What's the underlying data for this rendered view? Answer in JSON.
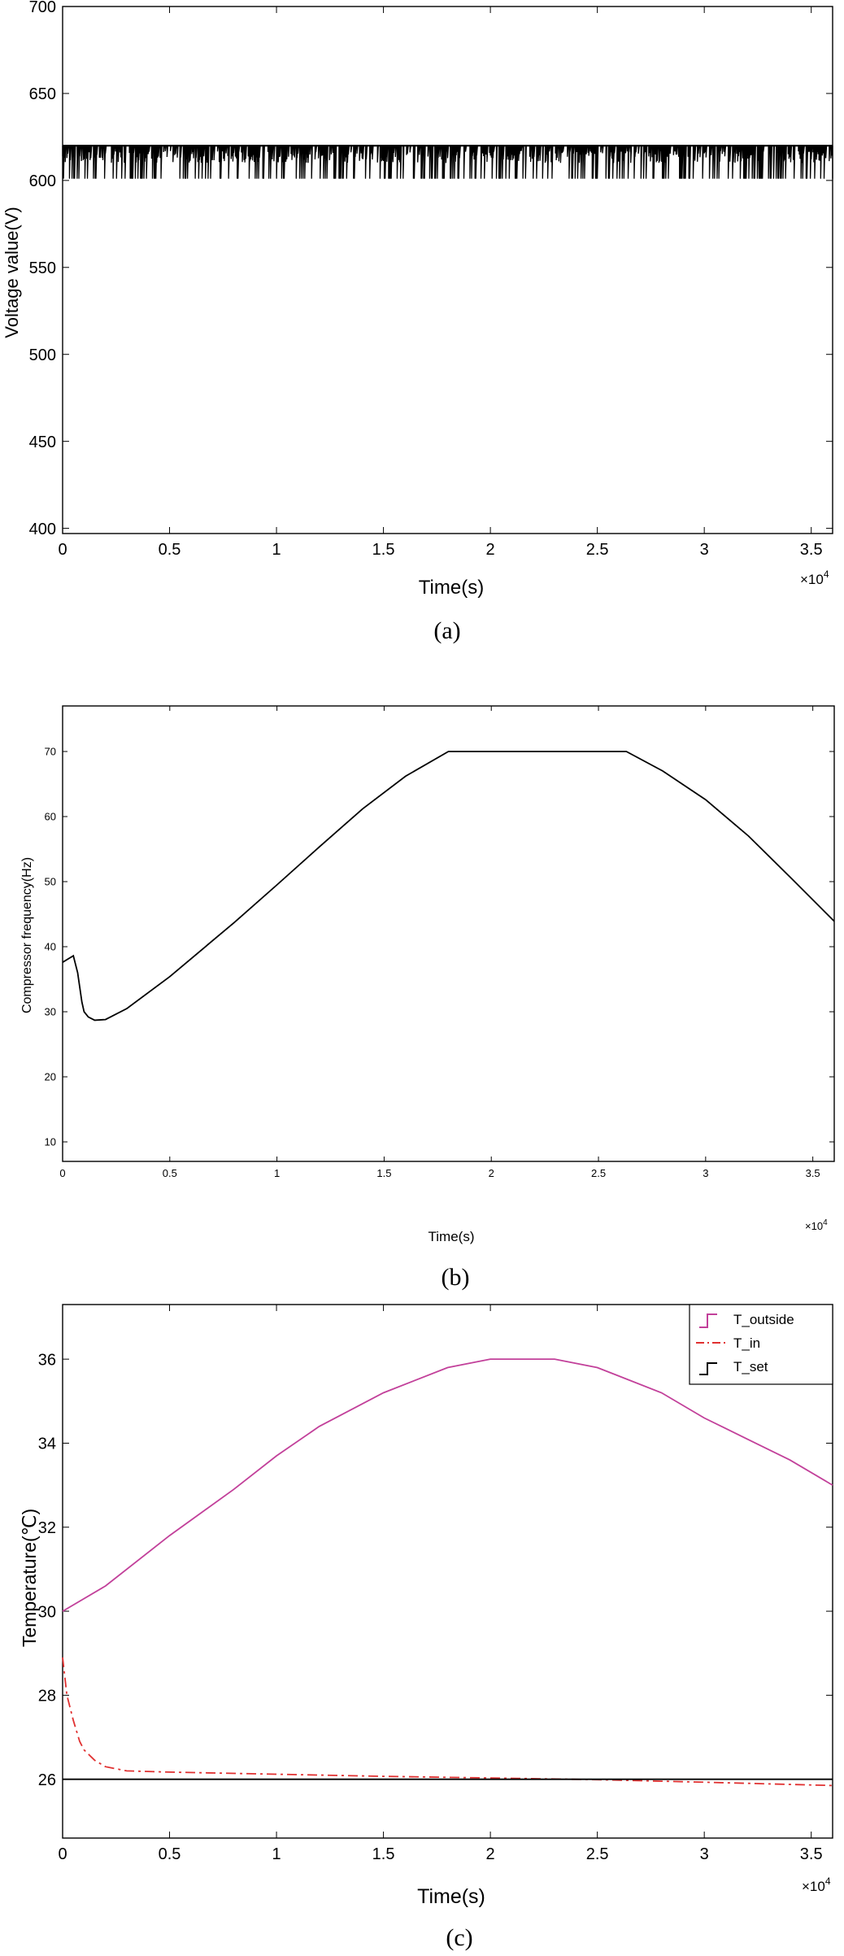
{
  "chart_data": [
    {
      "type": "line",
      "caption": "(a)",
      "xlabel": "Time(s)",
      "ylabel": "Voltage value(V)",
      "x_exponent": "×10",
      "x_exponent_power": "4",
      "xlim": [
        0,
        3.6
      ],
      "ylim": [
        397,
        700
      ],
      "xticks": [
        "0",
        "0.5",
        "1",
        "1.5",
        "2",
        "2.5",
        "3",
        "3.5"
      ],
      "yticks": [
        "400",
        "450",
        "500",
        "550",
        "600",
        "650",
        "700"
      ],
      "series": [
        {
          "color": "#000000",
          "high": 620,
          "band": [
            610,
            617
          ],
          "low_spikes": 601
        }
      ]
    },
    {
      "type": "line",
      "caption": "(b)",
      "xlabel": "Time(s)",
      "ylabel": "Compressor frequency(Hz)",
      "x_exponent": "×10",
      "x_exponent_power": "4",
      "xlim": [
        0,
        3.6
      ],
      "ylim": [
        7,
        77
      ],
      "xticks": [
        "0",
        "0.5",
        "1",
        "1.5",
        "2",
        "2.5",
        "3",
        "3.5"
      ],
      "yticks": [
        "10",
        "20",
        "30",
        "40",
        "50",
        "60",
        "70"
      ],
      "series": [
        {
          "color": "#000000",
          "x": [
            0,
            0.03,
            0.05,
            0.07,
            0.09,
            0.1,
            0.12,
            0.15,
            0.2,
            0.3,
            0.5,
            0.8,
            1.0,
            1.2,
            1.4,
            1.6,
            1.8,
            2.0,
            2.2,
            2.4,
            2.63,
            2.8,
            3.0,
            3.2,
            3.4,
            3.6
          ],
          "y": [
            37.6,
            38.2,
            38.6,
            36.0,
            31.5,
            30.0,
            29.2,
            28.7,
            28.8,
            30.5,
            35.4,
            43.7,
            49.5,
            55.4,
            61.2,
            66.2,
            70.0,
            70.0,
            70.0,
            70.0,
            70.0,
            67.0,
            62.6,
            57.0,
            50.5,
            43.9
          ]
        }
      ]
    },
    {
      "type": "line",
      "caption": "(c)",
      "xlabel": "Time(s)",
      "ylabel": "Temperature(℃)",
      "x_exponent": "×10",
      "x_exponent_power": "4",
      "xlim": [
        0,
        3.6
      ],
      "ylim": [
        24.6,
        37.3
      ],
      "xticks": [
        "0",
        "0.5",
        "1",
        "1.5",
        "2",
        "2.5",
        "3",
        "3.5"
      ],
      "yticks": [
        "26",
        "28",
        "30",
        "32",
        "34",
        "36"
      ],
      "legend": "top-right",
      "series": [
        {
          "name": "T_outside",
          "color": "#c2409a",
          "style": "solid",
          "x": [
            0,
            0.2,
            0.5,
            0.8,
            1.0,
            1.2,
            1.5,
            1.8,
            2.0,
            2.15,
            2.3,
            2.5,
            2.8,
            3.0,
            3.2,
            3.4,
            3.6
          ],
          "y": [
            30.0,
            30.6,
            31.8,
            32.9,
            33.7,
            34.4,
            35.2,
            35.8,
            36.0,
            36.0,
            36.0,
            35.8,
            35.2,
            34.6,
            34.1,
            33.6,
            33.0
          ]
        },
        {
          "name": "T_in",
          "color": "#e03030",
          "style": "dashdot",
          "x": [
            0,
            0.02,
            0.05,
            0.08,
            0.1,
            0.15,
            0.2,
            0.3,
            0.5,
            1.0,
            1.5,
            2.0,
            2.5,
            3.0,
            3.6
          ],
          "y": [
            28.9,
            28.0,
            27.4,
            26.9,
            26.7,
            26.45,
            26.3,
            26.2,
            26.17,
            26.12,
            26.07,
            26.03,
            25.99,
            25.93,
            25.85
          ]
        },
        {
          "name": "T_set",
          "color": "#000000",
          "style": "solid",
          "x": [
            0,
            3.6
          ],
          "y": [
            26.0,
            26.0
          ]
        }
      ]
    }
  ]
}
